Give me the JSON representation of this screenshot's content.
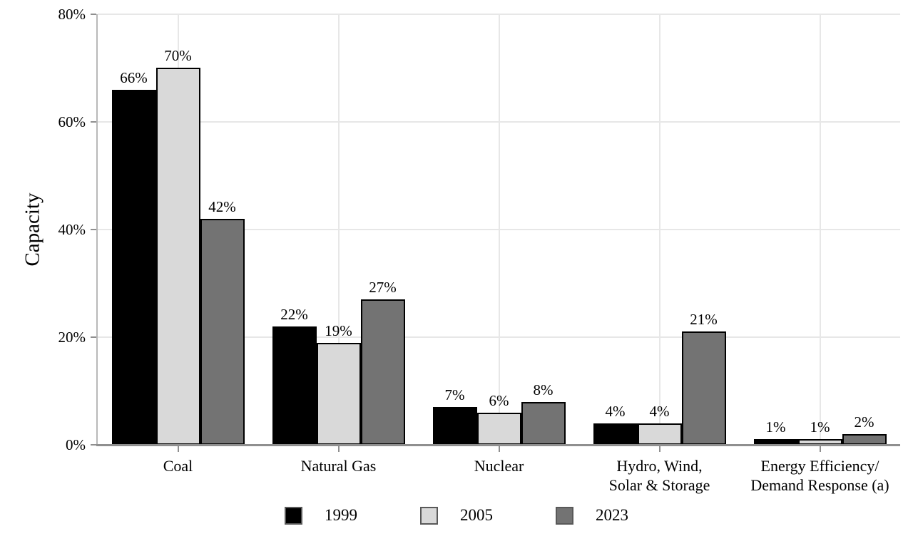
{
  "chart_data": {
    "type": "bar",
    "title": "",
    "xlabel": "",
    "ylabel": "Capacity",
    "ylim": [
      0,
      80
    ],
    "yticks": [
      0,
      20,
      40,
      60,
      80
    ],
    "ytick_labels": [
      "0%",
      "20%",
      "40%",
      "60%",
      "80%"
    ],
    "grid": "horizontal major gridlines at 20/40/60/80 plus vertical gridlines at category centers",
    "legend_position": "bottom-center",
    "categories": [
      "Coal",
      "Natural Gas",
      "Nuclear",
      "Hydro, Wind, Solar & Storage",
      "Energy Efficiency/ Demand Response (a)"
    ],
    "category_label_lines": [
      [
        "Coal"
      ],
      [
        "Natural Gas"
      ],
      [
        "Nuclear"
      ],
      [
        "Hydro, Wind,",
        "Solar & Storage"
      ],
      [
        "Energy Efficiency/",
        "Demand Response (a)"
      ]
    ],
    "series": [
      {
        "name": "1999",
        "color": "#000000",
        "values": [
          66,
          22,
          7,
          4,
          1
        ],
        "labels": [
          "66%",
          "22%",
          "7%",
          "4%",
          "1%"
        ]
      },
      {
        "name": "2005",
        "color": "#d9d9d9",
        "values": [
          70,
          19,
          6,
          4,
          1
        ],
        "labels": [
          "70%",
          "19%",
          "6%",
          "4%",
          "1%"
        ]
      },
      {
        "name": "2023",
        "color": "#737373",
        "values": [
          42,
          27,
          8,
          21,
          2
        ],
        "labels": [
          "42%",
          "27%",
          "8%",
          "21%",
          "2%"
        ]
      }
    ]
  },
  "colors": {
    "background": "#ffffff",
    "bar_border": "#000000",
    "gridline": "#e7e7e7",
    "x_axis_line": "#8f8f8f",
    "y_axis_line": "#b8b8b8",
    "tick_mark": "#8f8f8f",
    "text": "#000000",
    "legend_swatch_border": "#595959"
  }
}
